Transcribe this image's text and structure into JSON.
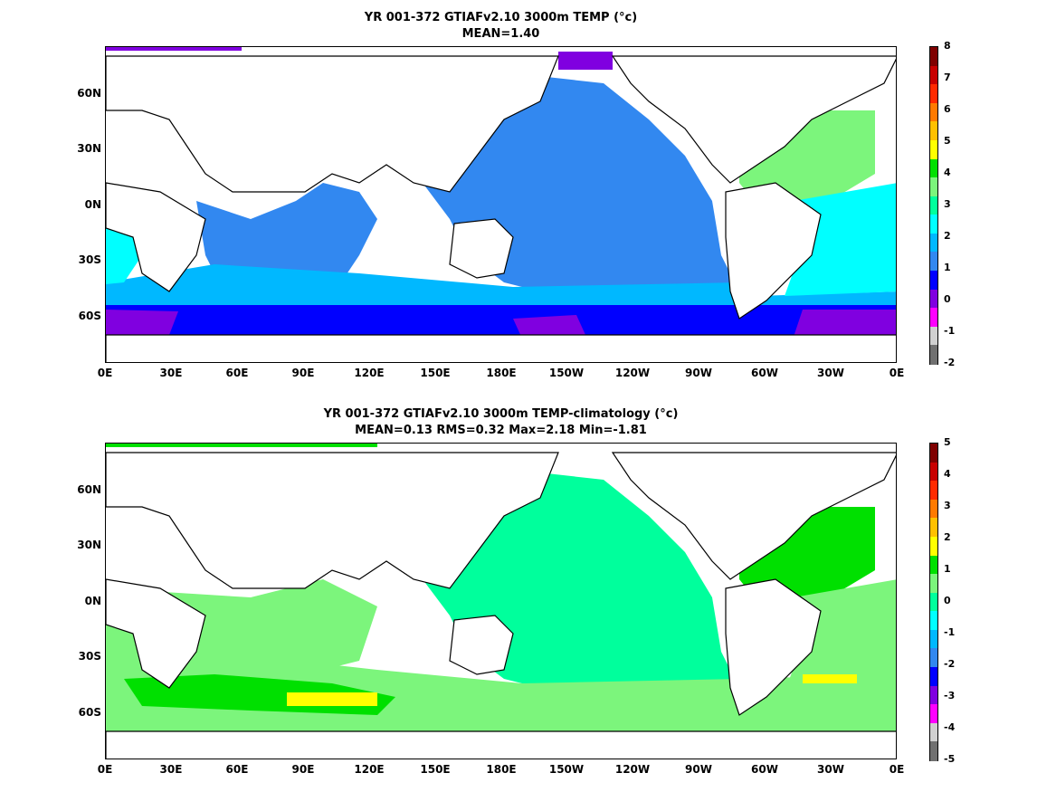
{
  "panels": [
    {
      "title_line1": "YR 001-372 GTIAFv2.10 3000m TEMP (°c)",
      "title_line2": "MEAN=1.40",
      "colorbar_labels": [
        "8",
        "7",
        "6",
        "5",
        "4",
        "3",
        "2",
        "1",
        "0",
        "-1",
        "-2"
      ],
      "colorbar_colors": [
        "#7f0000",
        "#c80000",
        "#ff2a00",
        "#ff7a00",
        "#ffc000",
        "#ffff00",
        "#00e000",
        "#7cf57c",
        "#00ff9c",
        "#00ffff",
        "#00b8ff",
        "#3288f0",
        "#0000ff",
        "#8000e0",
        "#ff00ff",
        "#d0d0d0",
        "#707070"
      ],
      "fills": {
        "deep": "#00ffff",
        "mid": "#00b8ff",
        "main": "#3288f0",
        "cold": "#0000ff",
        "vcold": "#8000e0",
        "atl": "#7cf57c"
      }
    },
    {
      "title_line1": "YR 001-372 GTIAFv2.10 3000m TEMP-climatology (°c)",
      "title_line2": "MEAN=0.13   RMS=0.32   Max=2.18   Min=-1.81",
      "colorbar_labels": [
        "5",
        "4",
        "3",
        "2",
        "1",
        "0",
        "-1",
        "-2",
        "-3",
        "-4",
        "-5"
      ],
      "colorbar_colors": [
        "#7f0000",
        "#c80000",
        "#ff2a00",
        "#ff7a00",
        "#ffc000",
        "#ffff00",
        "#00e000",
        "#7cf57c",
        "#00ff9c",
        "#00ffff",
        "#00b8ff",
        "#3288f0",
        "#0000ff",
        "#8000e0",
        "#ff00ff",
        "#d0d0d0",
        "#707070"
      ],
      "fills": {
        "pac": "#00ff9c",
        "ind": "#7cf57c",
        "warm": "#00e000",
        "hot": "#ffff00"
      }
    }
  ],
  "y_ticks": [
    "60N",
    "30N",
    "0N",
    "30S",
    "60S"
  ],
  "x_ticks": [
    "0E",
    "30E",
    "60E",
    "90E",
    "120E",
    "150E",
    "180E",
    "150W",
    "120W",
    "90W",
    "60W",
    "30W",
    "0E"
  ]
}
